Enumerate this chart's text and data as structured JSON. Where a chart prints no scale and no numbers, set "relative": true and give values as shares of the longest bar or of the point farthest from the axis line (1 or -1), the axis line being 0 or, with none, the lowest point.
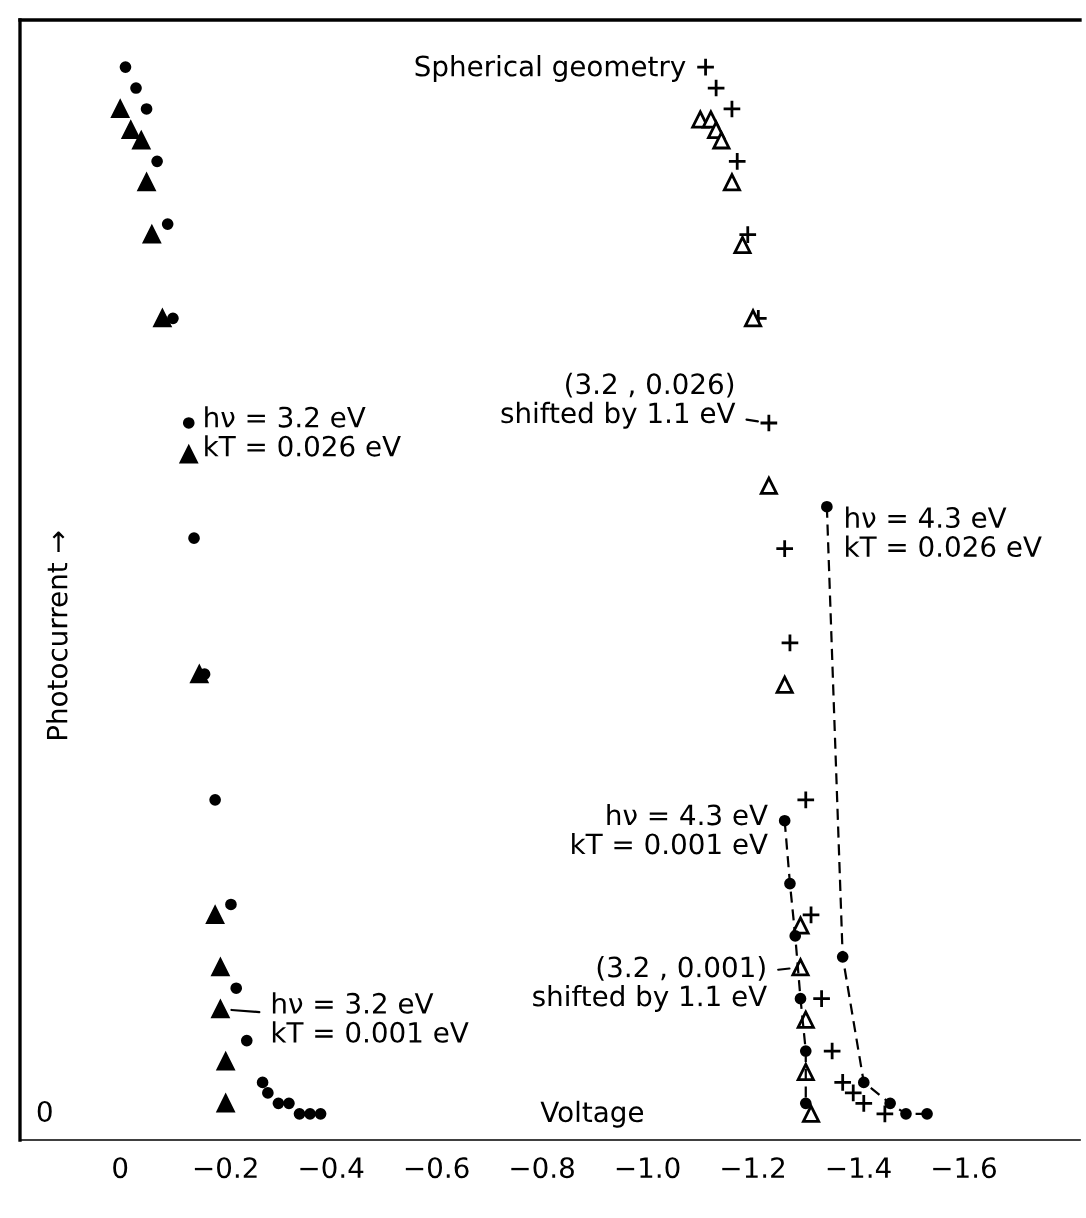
{
  "chart_data": {
    "type": "scatter",
    "title": "Spherical geometry",
    "xlabel": "Voltage",
    "ylabel": "Photocurrent →",
    "relative": true,
    "xlim": [
      0.19,
      -1.82
    ],
    "xticks": [
      0,
      {
        "value": -0.2,
        "label": "−0.2"
      },
      {
        "value": -0.4,
        "label": "−0.4"
      },
      {
        "value": -0.6,
        "label": "−0.6"
      },
      {
        "value": -0.8,
        "label": "−0.8"
      },
      {
        "value": -1.0,
        "label": "−1.0"
      },
      {
        "value": -1.2,
        "label": "−1.2"
      },
      {
        "value": -1.4,
        "label": "−1.4"
      },
      {
        "value": -1.6,
        "label": "−1.6"
      }
    ],
    "grid": false,
    "legend": false,
    "tick_labels": "x",
    "series": [
      {
        "marker": "circle",
        "color": "#000000",
        "x": [
          -0.01,
          -0.03,
          -0.05,
          -0.07,
          -0.09,
          -0.1,
          -0.13,
          -0.14,
          -0.16,
          -0.18,
          -0.21,
          -0.22,
          -0.24,
          -0.27,
          -0.28,
          -0.3,
          -0.32,
          -0.34,
          -0.36,
          -0.38
        ],
        "values": [
          1.0,
          0.98,
          0.96,
          0.91,
          0.85,
          0.76,
          0.66,
          0.55,
          0.42,
          0.3,
          0.2,
          0.12,
          0.07,
          0.03,
          0.02,
          0.01,
          0.01,
          0.0,
          0.0,
          0.0
        ]
      },
      {
        "marker": "triangle",
        "color": "#000000",
        "x": [
          0.0,
          -0.02,
          -0.04,
          -0.05,
          -0.06,
          -0.08,
          -0.13,
          -0.15,
          -0.18,
          -0.19,
          -0.19,
          -0.2,
          -0.2
        ],
        "values": [
          0.96,
          0.94,
          0.93,
          0.89,
          0.84,
          0.76,
          0.63,
          0.42,
          0.19,
          0.14,
          0.1,
          0.05,
          0.01
        ]
      },
      {
        "marker": "cross",
        "color": "#000000",
        "x": [
          -1.11,
          -1.13,
          -1.16,
          -1.17,
          -1.19,
          -1.21,
          -1.23,
          -1.26,
          -1.27,
          -1.3,
          -1.31,
          -1.33,
          -1.35,
          -1.37,
          -1.39,
          -1.41,
          -1.45
        ],
        "values": [
          1.0,
          0.98,
          0.96,
          0.91,
          0.84,
          0.76,
          0.66,
          0.54,
          0.45,
          0.3,
          0.19,
          0.11,
          0.06,
          0.03,
          0.02,
          0.01,
          0.0
        ]
      },
      {
        "marker": "triangle-open",
        "color": "#000000",
        "x": [
          -1.1,
          -1.12,
          -1.13,
          -1.14,
          -1.16,
          -1.18,
          -1.2,
          -1.23,
          -1.26,
          -1.29,
          -1.29,
          -1.3,
          -1.3,
          -1.31
        ],
        "values": [
          0.95,
          0.95,
          0.94,
          0.93,
          0.89,
          0.83,
          0.76,
          0.6,
          0.41,
          0.18,
          0.14,
          0.09,
          0.04,
          0.0
        ]
      },
      {
        "type": "line",
        "marker": "circle",
        "line_style": "dashed",
        "color": "#000000",
        "x": [
          -1.26,
          -1.27,
          -1.28,
          -1.29,
          -1.3,
          -1.3
        ],
        "values": [
          0.28,
          0.22,
          0.17,
          0.11,
          0.06,
          0.01
        ]
      },
      {
        "type": "line",
        "marker": "circle",
        "line_style": "dashed",
        "color": "#000000",
        "x": [
          -1.34,
          -1.37,
          -1.41,
          -1.46,
          -1.49,
          -1.53
        ],
        "values": [
          0.58,
          0.15,
          0.03,
          0.01,
          0.0,
          0.0
        ]
      }
    ],
    "annotations": [
      {
        "text": "hν = 3.2 eV\nkT = 0.026 eV",
        "x": -0.13,
        "y": 0.66
      },
      {
        "text": "hν = 3.2 eV\nkT = 0.001 eV",
        "x": -0.19,
        "y": 0.1
      },
      {
        "text": "(3.2 , 0.026)\nshifted by 1.1 eV",
        "x": -1.23,
        "y": 0.66
      },
      {
        "text": "hν = 4.3 eV\nkT = 0.026 eV",
        "x": -1.34,
        "y": 0.58
      },
      {
        "text": "hν = 4.3 eV\nkT = 0.001 eV",
        "x": -1.26,
        "y": 0.28
      },
      {
        "text": "(3.2 , 0.001)\nshifted by 1.1 eV",
        "x": -1.29,
        "y": 0.14
      },
      "0"
    ]
  }
}
